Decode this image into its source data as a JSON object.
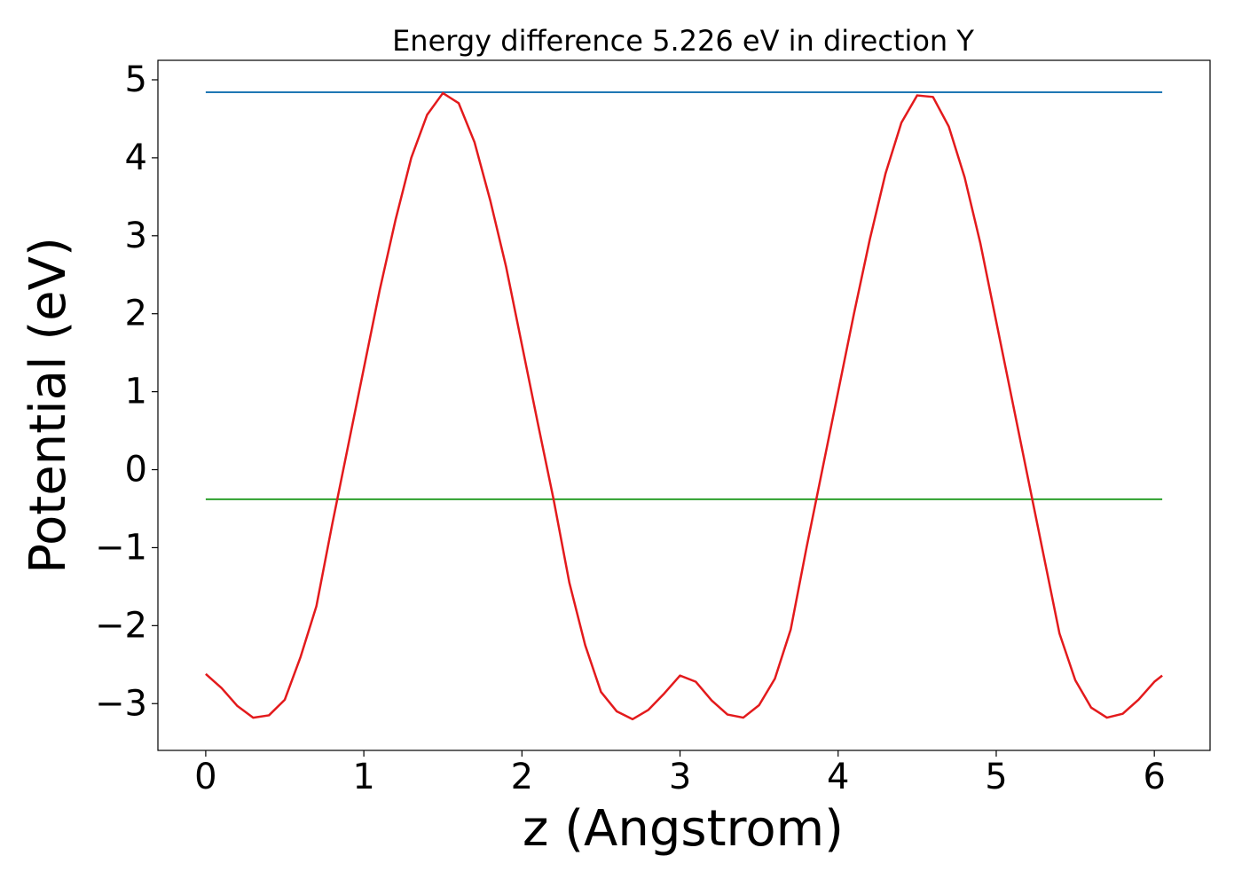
{
  "chart_data": {
    "type": "line",
    "title": "Energy difference 5.226 eV in direction Y",
    "xlabel": "z (Angstrom)",
    "ylabel": "Potential (eV)",
    "x": [
      0,
      0.1,
      0.2,
      0.3,
      0.4,
      0.5,
      0.6,
      0.7,
      0.8,
      0.9,
      1.0,
      1.1,
      1.2,
      1.3,
      1.4,
      1.5,
      1.6,
      1.7,
      1.8,
      1.9,
      2.0,
      2.1,
      2.2,
      2.3,
      2.4,
      2.5,
      2.6,
      2.7,
      2.8,
      2.9,
      3.0,
      3.1,
      3.2,
      3.3,
      3.4,
      3.5,
      3.6,
      3.7,
      3.8,
      3.9,
      4.0,
      4.1,
      4.2,
      4.3,
      4.4,
      4.5,
      4.6,
      4.7,
      4.8,
      4.9,
      5.0,
      5.1,
      5.2,
      5.3,
      5.4,
      5.5,
      5.6,
      5.7,
      5.8,
      5.9,
      6.0,
      6.05
    ],
    "series": [
      {
        "color": "#e31a1c",
        "values": [
          -2.62,
          -2.8,
          -3.03,
          -3.18,
          -3.15,
          -2.95,
          -2.4,
          -1.75,
          -0.7,
          0.3,
          1.3,
          2.3,
          3.2,
          4.0,
          4.55,
          4.83,
          4.7,
          4.2,
          3.45,
          2.6,
          1.6,
          0.6,
          -0.38,
          -1.45,
          -2.25,
          -2.85,
          -3.1,
          -3.2,
          -3.08,
          -2.87,
          -2.64,
          -2.72,
          -2.96,
          -3.14,
          -3.18,
          -3.02,
          -2.68,
          -2.05,
          -1.0,
          0.0,
          1.0,
          2.0,
          2.95,
          3.8,
          4.45,
          4.8,
          4.78,
          4.4,
          3.75,
          2.9,
          1.9,
          0.9,
          -0.1,
          -1.1,
          -2.1,
          -2.7,
          -3.05,
          -3.18,
          -3.13,
          -2.95,
          -2.72,
          -2.64
        ]
      }
    ],
    "hlines": [
      {
        "value": 4.84,
        "color": "#1f77b4",
        "xmin": 0,
        "xmax": 6.05
      },
      {
        "value": -0.38,
        "color": "#2ca02c",
        "xmin": 0,
        "xmax": 6.05
      }
    ],
    "xlim": [
      -0.3025,
      6.3525
    ],
    "ylim": [
      -3.6,
      5.25
    ],
    "xticks": [
      0,
      1,
      2,
      3,
      4,
      5,
      6
    ],
    "yticks": [
      {
        "value": -3,
        "label": "−3"
      },
      {
        "value": -2,
        "label": "−2"
      },
      {
        "value": -1,
        "label": "−1"
      },
      0,
      1,
      2,
      3,
      4,
      5
    ],
    "grid": false
  }
}
